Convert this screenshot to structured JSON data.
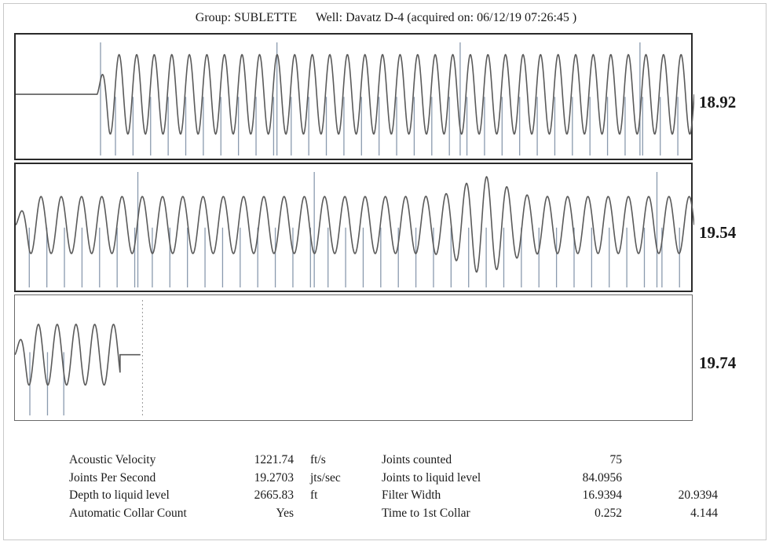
{
  "header": {
    "group_label": "Group:",
    "group": "SUBLETTE",
    "well_label": "Well:",
    "well": "Davatz D-4",
    "acquired": "(acquired on: 06/12/19 07:26:45 )"
  },
  "chart_data": [
    {
      "type": "line",
      "panel_end_time": "18.92",
      "series": [
        {
          "signal": "acoustic trace",
          "segments": [
            {
              "from": 0.0,
              "to": 0.12,
              "kind": "flat"
            },
            {
              "from": 0.12,
              "to": 1.0,
              "kind": "oscillation",
              "cycles": 34,
              "amplitude": 0.78
            }
          ]
        },
        {
          "signal": "collar markers",
          "markers": [
            0.125,
            0.385,
            0.655,
            0.92
          ],
          "start": 0.147,
          "spacing": 0.0259
        }
      ]
    },
    {
      "type": "line",
      "panel_end_time": "19.54",
      "series": [
        {
          "signal": "acoustic trace",
          "segments": [
            {
              "from": 0.0,
              "to": 1.0,
              "kind": "oscillation",
              "cycles": 33.5,
              "amplitude": 0.55,
              "burst": {
                "center": 0.69,
                "width": 0.04,
                "gain": 0.7
              }
            }
          ]
        },
        {
          "signal": "collar markers",
          "markers": [
            0.18,
            0.44,
            0.945
          ],
          "start": 0.02,
          "spacing": 0.0259
        }
      ]
    },
    {
      "type": "line",
      "panel_end_time": "19.74",
      "series": [
        {
          "signal": "acoustic trace",
          "segments": [
            {
              "from": 0.0,
              "to": 0.155,
              "kind": "oscillation",
              "cycles": 5.6,
              "amplitude": 0.6
            },
            {
              "from": 0.155,
              "to": 0.185,
              "kind": "flat"
            }
          ]
        },
        {
          "signal": "collar markers",
          "markers": [
            0.022,
            0.048,
            0.072
          ],
          "end_marker": 0.188
        }
      ]
    }
  ],
  "results": {
    "col1": [
      {
        "label": "Acoustic Velocity",
        "value": "1221.74",
        "unit": "ft/s"
      },
      {
        "label": "Joints Per Second",
        "value": "19.2703",
        "unit": "jts/sec"
      },
      {
        "label": "Depth to liquid level",
        "value": "2665.83",
        "unit": "ft"
      },
      {
        "label": "Automatic Collar Count",
        "value": "Yes",
        "unit": ""
      }
    ],
    "col2": [
      {
        "label": "Joints counted",
        "value": "75",
        "value2": ""
      },
      {
        "label": "Joints to liquid level",
        "value": "84.0956",
        "value2": ""
      },
      {
        "label": "Filter Width",
        "value": "16.9394",
        "value2": "20.9394"
      },
      {
        "label": "Time to 1st Collar",
        "value": "0.252",
        "value2": "4.144"
      }
    ]
  },
  "colors": {
    "trace": "#5a5a5a",
    "marker": "#8a9aae",
    "border": "#2a2a2a"
  }
}
